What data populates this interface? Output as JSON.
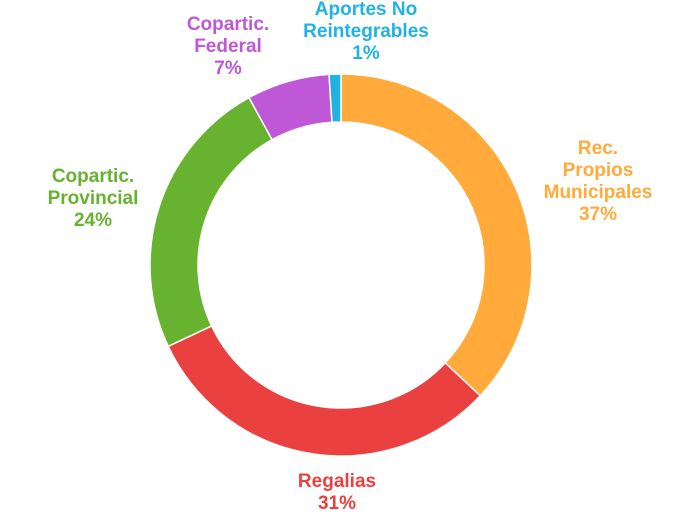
{
  "chart_data": {
    "type": "pie",
    "style": "donut",
    "slices": [
      {
        "label": [
          "Rec.",
          "Propios",
          "Municipales"
        ],
        "pct_text": "37%",
        "value": 37,
        "color": "#FFAA3B"
      },
      {
        "label": [
          "Regalias"
        ],
        "pct_text": "31%",
        "value": 31,
        "color": "#EA4040"
      },
      {
        "label": [
          "Copartic.",
          "Provincial"
        ],
        "pct_text": "24%",
        "value": 24,
        "color": "#67B22E"
      },
      {
        "label": [
          "Copartic.",
          "Federal"
        ],
        "pct_text": "7%",
        "value": 7,
        "color": "#BF58D6"
      },
      {
        "label": [
          "Aportes No",
          "Reintegrables"
        ],
        "pct_text": "1%",
        "value": 1,
        "color": "#21B2E4"
      }
    ]
  }
}
